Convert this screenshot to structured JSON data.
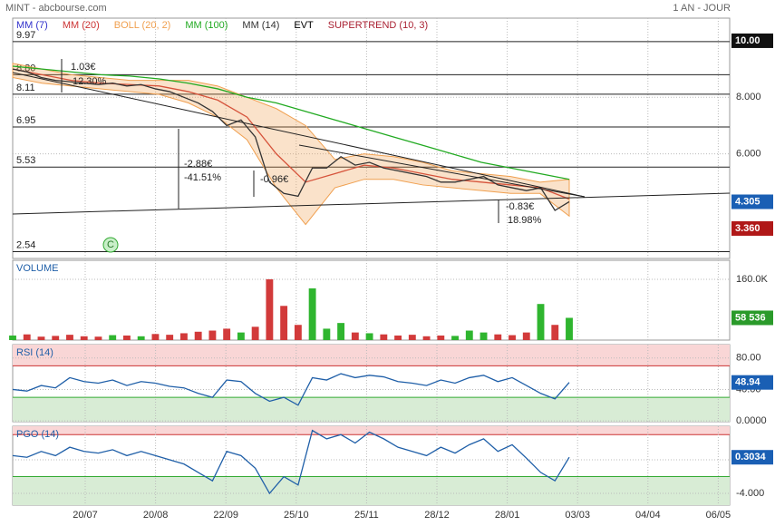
{
  "header": {
    "symbol": "MINT - abcbourse.com",
    "period": "1 AN - JOUR"
  },
  "chart_data": [
    {
      "type": "line",
      "color": "#333333",
      "values": [
        9.0,
        8.9,
        8.7,
        8.6,
        8.55,
        8.5,
        8.45,
        8.5,
        8.4,
        8.45,
        8.3,
        8.2,
        8.0,
        7.8,
        7.5,
        7.0,
        7.2,
        6.6,
        5.0,
        4.6,
        4.5,
        5.5,
        5.5,
        5.9,
        5.6,
        5.7,
        5.5,
        5.4,
        5.3,
        5.2,
        5.0,
        5.0,
        5.1,
        5.2,
        4.9,
        4.8,
        4.7,
        4.8,
        4.0,
        4.305
      ],
      "legend": [
        {
          "name": "MM (7)",
          "color": "#3333cc"
        },
        {
          "name": "MM (20)",
          "color": "#cc3333",
          "values": [
            9.0,
            8.8,
            8.6,
            8.5,
            8.45,
            8.4,
            8.2,
            7.9,
            7.3,
            6.0,
            5.0,
            5.3,
            5.6,
            5.5,
            5.3,
            5.1,
            5.0,
            4.9,
            4.8,
            4.4
          ]
        },
        {
          "name": "BOLL (20, 2)",
          "color": "#f0a050",
          "upper": [
            9.2,
            9.0,
            8.8,
            8.7,
            8.6,
            8.6,
            8.6,
            8.4,
            8.0,
            7.6,
            7.0,
            5.8,
            6.0,
            5.9,
            5.7,
            5.4,
            5.3,
            5.2,
            5.0,
            5.1
          ],
          "lower": [
            8.7,
            8.5,
            8.4,
            8.3,
            8.2,
            8.1,
            7.8,
            7.3,
            6.5,
            4.8,
            3.5,
            4.8,
            5.1,
            5.1,
            4.9,
            4.8,
            4.7,
            4.6,
            4.6,
            3.8
          ]
        },
        {
          "name": "MM (100)",
          "color": "#22aa22",
          "values": [
            9.1,
            9.0,
            8.9,
            8.8,
            8.75,
            8.65,
            8.5,
            8.3,
            8.0,
            7.8,
            7.5,
            7.2,
            6.9,
            6.6,
            6.3,
            6.0,
            5.7,
            5.5,
            5.3,
            5.1
          ]
        },
        {
          "name": "MM (14)",
          "color": "#333333"
        },
        {
          "name": "EVT",
          "color": "#000000"
        },
        {
          "name": "SUPERTREND (10, 3)",
          "color": "#aa2233"
        }
      ],
      "ylim": [
        2.3,
        10.8
      ],
      "yticks": [
        {
          "value": 8,
          "label": "8.000"
        },
        {
          "value": 6,
          "label": "6.000"
        }
      ],
      "levels": [
        {
          "value": 9.97,
          "label": "9.97"
        },
        {
          "value": 8.8,
          "label": "8.80"
        },
        {
          "value": 8.11,
          "label": "8.11"
        },
        {
          "value": 6.95,
          "label": "6.95"
        },
        {
          "value": 5.53,
          "label": "5.53"
        },
        {
          "value": 2.54,
          "label": "2.54"
        }
      ],
      "tags": [
        {
          "value": 10,
          "label": "10.00",
          "color": "#111111"
        },
        {
          "value": 4.305,
          "label": "4.305",
          "color": "#1a5fb4"
        },
        {
          "value": 3.36,
          "label": "3.360",
          "color": "#b01818"
        }
      ],
      "annotations": [
        "1.03€",
        "12.30%",
        "-2.88€",
        "-41.51%",
        "-0.96€",
        "-0.83€",
        "18.98%"
      ],
      "event_marker": "C",
      "grid": true
    },
    {
      "type": "bar",
      "title": "VOLUME",
      "values": [
        12000,
        15000,
        9000,
        11000,
        14000,
        10000,
        9000,
        13000,
        12000,
        10000,
        16000,
        14000,
        18000,
        22000,
        25000,
        30000,
        20000,
        35000,
        160000,
        90000,
        40000,
        136000,
        30000,
        45000,
        20000,
        18000,
        15000,
        12000,
        14000,
        10000,
        12000,
        11000,
        25000,
        20000,
        15000,
        13000,
        20000,
        95000,
        40000,
        58536
      ],
      "ylim": [
        0,
        210000
      ],
      "yticks": [
        {
          "value": 160000,
          "label": "160.0K"
        }
      ],
      "tags": [
        {
          "value": 58536,
          "label": "58 536",
          "color": "#2a9a2a"
        }
      ],
      "grid": true
    },
    {
      "type": "line",
      "title": "RSI (14)",
      "color": "#1f5fa8",
      "values": [
        40,
        38,
        45,
        42,
        55,
        50,
        48,
        52,
        45,
        50,
        48,
        44,
        42,
        35,
        30,
        52,
        50,
        35,
        25,
        30,
        20,
        55,
        52,
        60,
        55,
        58,
        56,
        50,
        48,
        45,
        52,
        48,
        55,
        58,
        50,
        55,
        45,
        35,
        28,
        48.94
      ],
      "ylim": [
        -1,
        97
      ],
      "yticks": [
        {
          "value": 80,
          "label": "80.00"
        },
        {
          "value": 40,
          "label": "40.00"
        },
        {
          "value": 0,
          "label": "0.0000"
        }
      ],
      "zones": [
        70,
        30
      ],
      "tags": [
        {
          "value": 48.94,
          "label": "48.94",
          "color": "#1a5fb4"
        }
      ],
      "grid": true
    },
    {
      "type": "line",
      "title": "PGO (14)",
      "color": "#1f5fa8",
      "values": [
        0.5,
        0.3,
        1,
        0.5,
        1.5,
        1,
        0.8,
        1.2,
        0.5,
        1,
        0.5,
        0,
        -0.5,
        -1.5,
        -2.5,
        1,
        0.5,
        -1,
        -4,
        -2,
        -3,
        3.5,
        2.5,
        3,
        2,
        3.3,
        2.5,
        1.5,
        1,
        0.5,
        1.5,
        0.8,
        1.8,
        2.5,
        1,
        1.8,
        0.2,
        -1.5,
        -2.5,
        0.3034
      ],
      "ylim": [
        -5.4,
        4
      ],
      "yticks": [
        {
          "value": 0,
          "label": "0.0000"
        },
        {
          "value": -4,
          "label": "-4.000"
        }
      ],
      "zones": [
        3,
        -2
      ],
      "tags": [
        {
          "value": 0.3034,
          "label": "0.3034",
          "color": "#1a5fb4"
        }
      ],
      "xtick_labels": [
        "20/07",
        "20/08",
        "22/09",
        "25/10",
        "25/11",
        "28/12",
        "28/01",
        "03/03",
        "04/04",
        "06/05"
      ],
      "grid": true
    }
  ]
}
